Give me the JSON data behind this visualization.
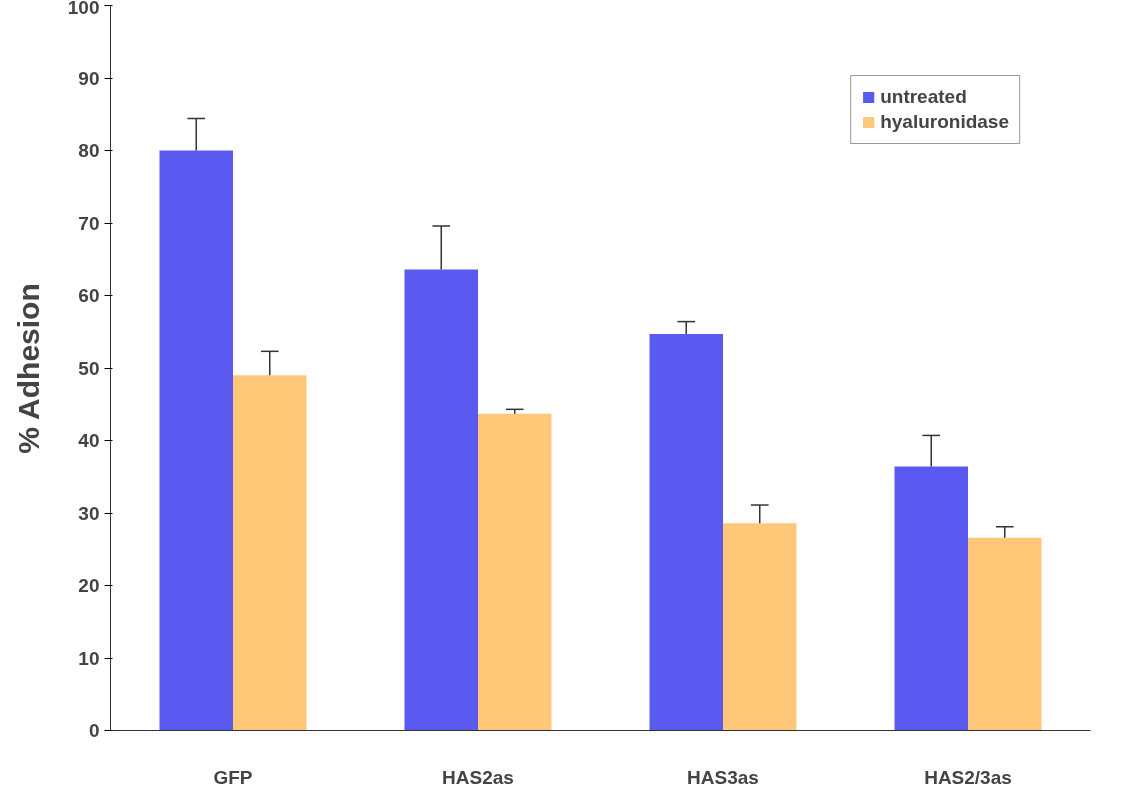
{
  "chart_data": {
    "type": "bar",
    "ylabel": "% Adhesion",
    "categories": [
      "GFP",
      "HAS2as",
      "HAS3as",
      "HAS2/3as"
    ],
    "series": [
      {
        "name": "untreated",
        "color": "#5a5af0",
        "values": [
          80,
          63.6,
          54.7,
          36.4
        ],
        "errors": [
          [
            80,
            84.4
          ],
          [
            63.6,
            69.6
          ],
          [
            54.7,
            56.4
          ],
          [
            36.4,
            40.7
          ]
        ]
      },
      {
        "name": "hyaluronidase",
        "color": "#ffc878",
        "values": [
          49,
          43.7,
          28.6,
          26.6
        ],
        "errors": [
          [
            49,
            52.3
          ],
          [
            43.7,
            44.3
          ],
          [
            28.6,
            31.1
          ],
          [
            26.6,
            28.1
          ]
        ]
      }
    ],
    "ylim": [
      0,
      100
    ],
    "yticks": [
      0,
      10,
      20,
      30,
      40,
      50,
      60,
      70,
      80,
      90,
      100
    ],
    "grid": false,
    "legend": "top right"
  }
}
